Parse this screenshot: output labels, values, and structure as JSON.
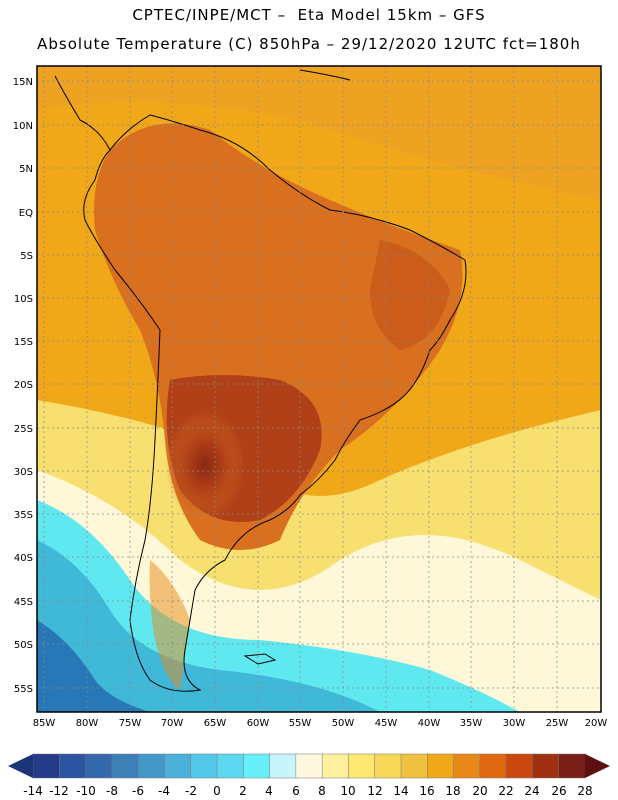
{
  "header": {
    "line1": "CPTEC/INPE/MCT –  Eta Model 15km – GFS",
    "line2": "Absolute Temperature (C) 850hPa – 29/12/2020 12UTC fct=180h"
  },
  "map": {
    "lat_labels": [
      "15N",
      "10N",
      "5N",
      "EQ",
      "5S",
      "10S",
      "15S",
      "20S",
      "25S",
      "30S",
      "35S",
      "40S",
      "45S",
      "50S",
      "55S"
    ],
    "lon_labels": [
      "85W",
      "80W",
      "75W",
      "70W",
      "65W",
      "60W",
      "55W",
      "50W",
      "45W",
      "40W",
      "35W",
      "30W",
      "25W",
      "20W"
    ],
    "colors": {
      "ocean_warm": "#f0a818",
      "land_hot": "#d87020",
      "hotspot": "#b04018",
      "core": "#8a2810",
      "cool_yellow": "#f8e070",
      "pale": "#fff8d8",
      "cyan": "#60e8f0",
      "teal": "#40b8d8",
      "deep": "#2878b8",
      "coast": "#000000"
    }
  },
  "colorbar": {
    "labels": [
      "-14",
      "-12",
      "-10",
      "-8",
      "-6",
      "-4",
      "-2",
      "0",
      "2",
      "4",
      "6",
      "8",
      "10",
      "12",
      "14",
      "16",
      "18",
      "20",
      "22",
      "24",
      "26",
      "28"
    ],
    "colors": [
      "#243c88",
      "#2c54a0",
      "#3468ac",
      "#3c80b8",
      "#4498c8",
      "#4cb0d8",
      "#54c8e8",
      "#5cd8f0",
      "#68f0f8",
      "#c8f4fc",
      "#fff8e0",
      "#fff0a0",
      "#ffe870",
      "#f8d858",
      "#f0c040",
      "#f0a818",
      "#e88818",
      "#e06810",
      "#c84810",
      "#a03010",
      "#782018"
    ],
    "end_low": "#1c3478",
    "end_high": "#5c1010"
  }
}
